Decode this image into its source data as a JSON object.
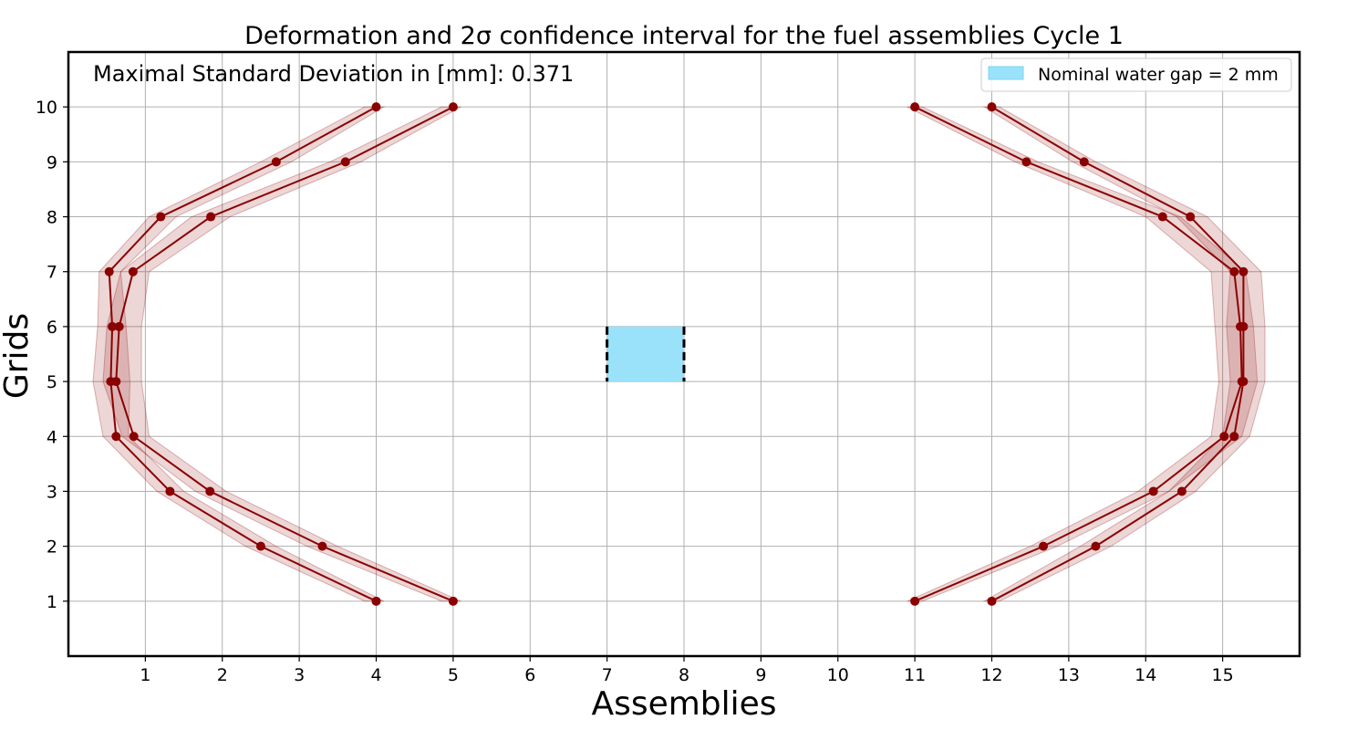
{
  "chart_data": {
    "type": "line",
    "title": "Deformation and 2σ confidence interval for the fuel assemblies Cycle 1",
    "xlabel": "Assemblies",
    "ylabel": "Grids",
    "xlim": [
      0,
      16
    ],
    "ylim": [
      0,
      11
    ],
    "xticks": [
      "1",
      "2",
      "3",
      "4",
      "5",
      "6",
      "7",
      "8",
      "9",
      "10",
      "11",
      "12",
      "13",
      "14",
      "15"
    ],
    "yticks": [
      "1",
      "2",
      "3",
      "4",
      "5",
      "6",
      "7",
      "8",
      "9",
      "10"
    ],
    "grid": true,
    "annotation": "Maximal Standard Deviation in [mm]: 0.371",
    "legend": {
      "label": "Nominal water gap = 2 mm",
      "position": "top-right"
    },
    "water_gap": {
      "x0": 7,
      "x1": 8,
      "y0": 5,
      "y1": 6,
      "color": "#99e2fa"
    },
    "colors": {
      "line": "#8b0000",
      "band": "rgba(139,0,0,0.16)",
      "band_edge": "rgba(139,0,0,0.28)"
    },
    "y": [
      1,
      2,
      3,
      4,
      5,
      6,
      7,
      8,
      9,
      10
    ],
    "series": [
      {
        "x": [
          4.0,
          2.5,
          1.32,
          0.62,
          0.55,
          0.57,
          0.53,
          1.2,
          2.7,
          4.0
        ],
        "lower": [
          3.85,
          2.3,
          1.15,
          0.45,
          0.32,
          0.38,
          0.4,
          1.05,
          2.5,
          3.85
        ],
        "upper": [
          4.1,
          2.7,
          1.5,
          0.78,
          0.8,
          0.75,
          0.68,
          1.4,
          2.9,
          4.1
        ]
      },
      {
        "x": [
          5.0,
          3.3,
          1.84,
          0.85,
          0.62,
          0.66,
          0.84,
          1.85,
          3.6,
          5.0
        ],
        "lower": [
          4.85,
          3.1,
          1.65,
          0.7,
          0.45,
          0.5,
          0.68,
          1.6,
          3.4,
          4.85
        ],
        "upper": [
          5.1,
          3.5,
          2.05,
          1.05,
          0.95,
          0.95,
          1.05,
          2.1,
          3.8,
          5.1
        ]
      },
      {
        "x": [
          11.0,
          12.67,
          14.1,
          15.02,
          15.25,
          15.23,
          15.15,
          14.22,
          12.45,
          11.0
        ],
        "lower": [
          10.9,
          12.5,
          13.9,
          14.85,
          14.95,
          14.9,
          14.85,
          14.0,
          12.3,
          10.9
        ],
        "upper": [
          11.1,
          12.85,
          14.3,
          15.25,
          15.45,
          15.4,
          15.3,
          14.45,
          12.6,
          11.1
        ]
      },
      {
        "x": [
          12.0,
          13.35,
          14.47,
          15.15,
          15.27,
          15.27,
          15.27,
          14.58,
          13.2,
          12.0
        ],
        "lower": [
          11.9,
          13.15,
          14.3,
          15.0,
          15.1,
          15.05,
          15.1,
          14.4,
          13.05,
          11.9
        ],
        "upper": [
          12.1,
          13.55,
          14.65,
          15.35,
          15.55,
          15.55,
          15.5,
          14.8,
          13.35,
          12.1
        ]
      }
    ]
  }
}
